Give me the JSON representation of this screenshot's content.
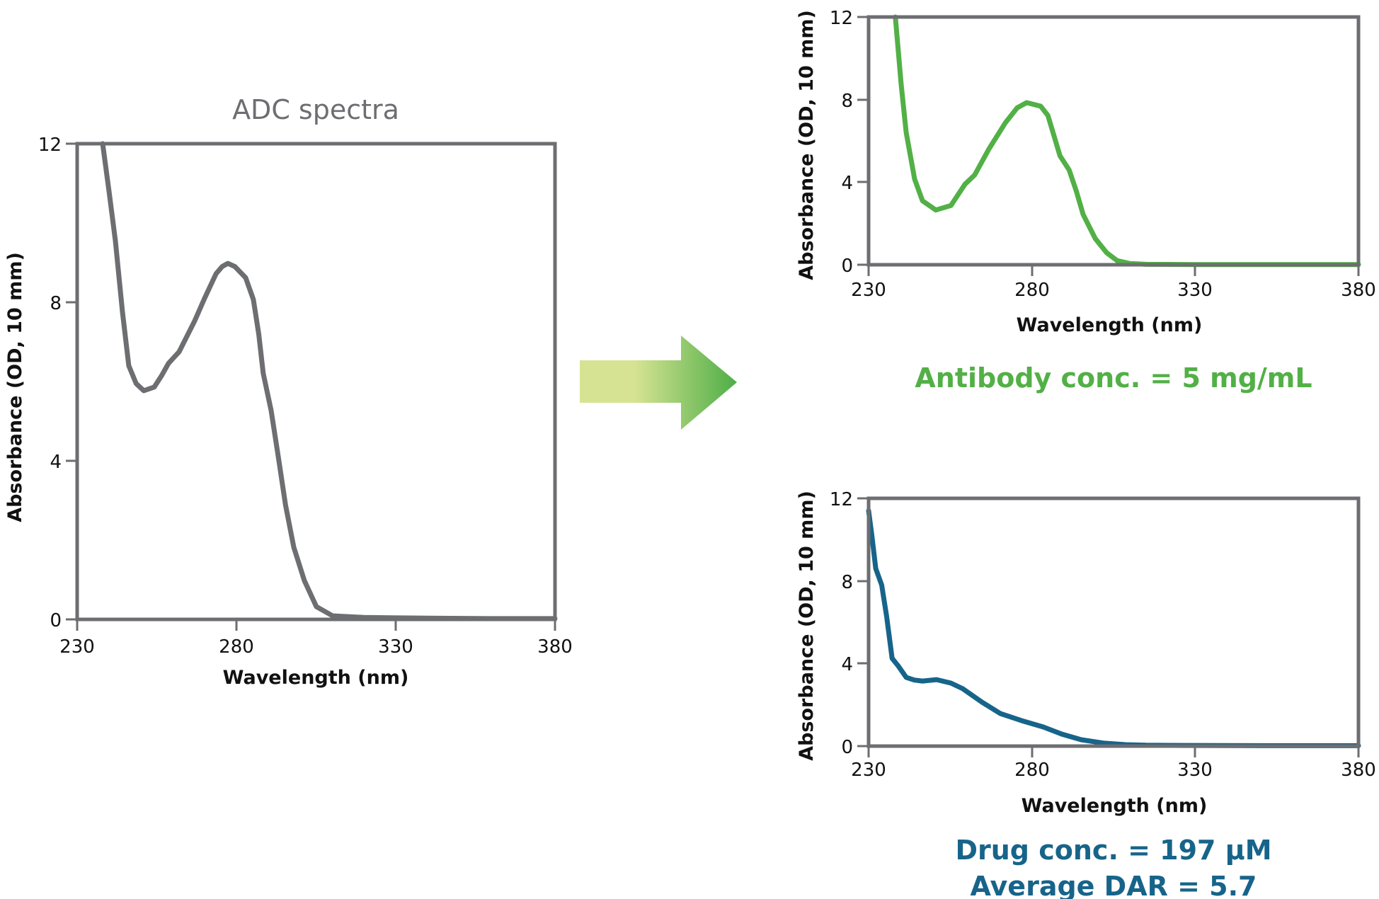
{
  "figure": {
    "arrow": {
      "gradient_start": "#d6e392",
      "gradient_end": "#4eae47"
    },
    "colors": {
      "axis": "#6d6e71",
      "adc": "#6d6e71",
      "antibody": "#52b046",
      "drug": "#17648a",
      "text": "#111111"
    }
  },
  "charts": {
    "adc": {
      "title": "ADC spectra",
      "xlabel": "Wavelength (nm)",
      "ylabel": "Absorbance (OD, 10 mm)",
      "xticks": [
        "230",
        "280",
        "330",
        "380"
      ],
      "yticks": [
        "0",
        "4",
        "8",
        "12"
      ],
      "caption": []
    },
    "antibody": {
      "xlabel": "Wavelength (nm)",
      "ylabel": "Absorbance (OD, 10 mm)",
      "xticks": [
        "230",
        "280",
        "330",
        "380"
      ],
      "yticks": [
        "0",
        "4",
        "8",
        "12"
      ],
      "caption": [
        "Antibody conc. = 5 mg/mL"
      ]
    },
    "drug": {
      "xlabel": "Wavelength (nm)",
      "ylabel": "Absorbance (OD, 10 mm)",
      "xticks": [
        "230",
        "280",
        "330",
        "380"
      ],
      "yticks": [
        "0",
        "4",
        "8",
        "12"
      ],
      "caption": [
        "Drug conc. = 197 µM",
        "Average DAR = 5.7"
      ]
    }
  },
  "chart_data": [
    {
      "id": "adc",
      "type": "line",
      "title": "ADC spectra",
      "xlabel": "Wavelength (nm)",
      "ylabel": "Absorbance (OD, 10 mm)",
      "xlim": [
        230,
        380
      ],
      "ylim": [
        0,
        12
      ],
      "xticks": [
        230,
        280,
        330,
        380
      ],
      "yticks": [
        0,
        4,
        8,
        12
      ],
      "grid": false,
      "legend": null,
      "series": [
        {
          "name": "ADC",
          "color": "#6d6e71",
          "x": [
            238.0,
            240.0,
            242.0,
            244.2,
            246.2,
            248.5,
            250.9,
            254.2,
            256.5,
            258.7,
            262.0,
            266.9,
            270.0,
            273.6,
            275.5,
            277.3,
            279.5,
            282.9,
            285.3,
            287.0,
            288.4,
            290.9,
            293.2,
            295.4,
            298.0,
            301.3,
            305.1,
            310.2,
            320.0,
            328.7,
            340.0,
            360.0,
            380.0
          ],
          "y": [
            12.0,
            10.8,
            9.55,
            7.77,
            6.4,
            5.95,
            5.77,
            5.86,
            6.15,
            6.46,
            6.75,
            7.53,
            8.1,
            8.72,
            8.9,
            8.98,
            8.9,
            8.62,
            8.07,
            7.2,
            6.21,
            5.27,
            4.07,
            2.89,
            1.82,
            0.98,
            0.32,
            0.09,
            0.05,
            0.04,
            0.03,
            0.02,
            0.02
          ]
        }
      ]
    },
    {
      "id": "antibody",
      "type": "line",
      "title": "",
      "xlabel": "Wavelength (nm)",
      "ylabel": "Absorbance (OD, 10 mm)",
      "xlim": [
        230,
        380
      ],
      "ylim": [
        0,
        12
      ],
      "xticks": [
        230,
        280,
        330,
        380
      ],
      "yticks": [
        0,
        4,
        8,
        12
      ],
      "grid": false,
      "annotation": "Antibody conc. = 5 mg/mL",
      "series": [
        {
          "name": "Antibody",
          "color": "#52b046",
          "x": [
            238.2,
            240.0,
            241.5,
            244.1,
            246.5,
            250.6,
            255.2,
            259.5,
            262.5,
            266.9,
            271.9,
            275.5,
            278.4,
            282.7,
            284.9,
            288.6,
            291.4,
            293.6,
            295.7,
            299.4,
            302.9,
            306.1,
            310.0,
            315.0,
            330.0,
            350.0,
            380.0
          ],
          "y": [
            12.0,
            8.7,
            6.4,
            4.15,
            3.1,
            2.65,
            2.87,
            3.9,
            4.35,
            5.62,
            6.88,
            7.6,
            7.85,
            7.68,
            7.23,
            5.28,
            4.59,
            3.57,
            2.43,
            1.27,
            0.58,
            0.2,
            0.06,
            0.02,
            0.01,
            0.01,
            0.01
          ]
        }
      ]
    },
    {
      "id": "drug",
      "type": "line",
      "title": "",
      "xlabel": "Wavelength (nm)",
      "ylabel": "Absorbance (OD, 10 mm)",
      "xlim": [
        230,
        380
      ],
      "ylim": [
        0,
        12
      ],
      "xticks": [
        230,
        280,
        330,
        380
      ],
      "yticks": [
        0,
        4,
        8,
        12
      ],
      "grid": false,
      "annotation": [
        "Drug conc. = 197 µM",
        "Average DAR = 5.7"
      ],
      "series": [
        {
          "name": "Drug",
          "color": "#17648a",
          "x": [
            230.0,
            231.0,
            232.2,
            234.0,
            235.5,
            237.2,
            239.0,
            241.5,
            244.0,
            246.5,
            250.8,
            255.2,
            258.8,
            264.7,
            270.3,
            276.9,
            283.4,
            289.2,
            295.1,
            302.2,
            308.7,
            315.0,
            330.0,
            350.0,
            380.0
          ],
          "y": [
            11.4,
            10.2,
            8.6,
            7.8,
            6.3,
            4.25,
            3.9,
            3.33,
            3.2,
            3.15,
            3.22,
            3.05,
            2.78,
            2.13,
            1.58,
            1.23,
            0.93,
            0.58,
            0.31,
            0.14,
            0.07,
            0.04,
            0.03,
            0.02,
            0.02
          ]
        }
      ]
    }
  ]
}
